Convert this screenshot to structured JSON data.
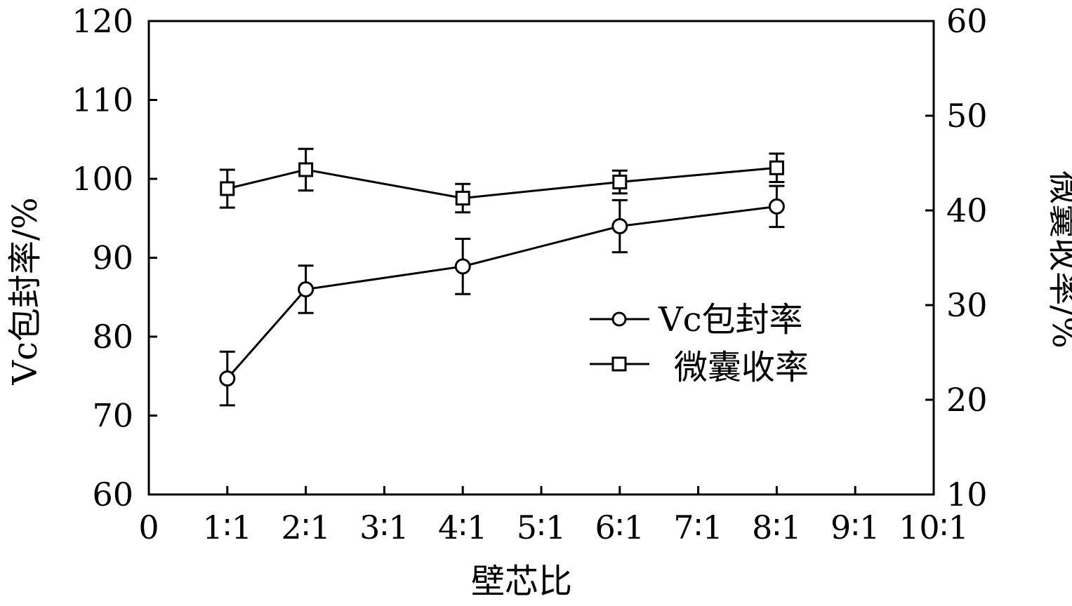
{
  "chart_data": {
    "type": "line",
    "xlabel": "壁芯比",
    "ylabel_left": "Vc包封率/%",
    "ylabel_right": "微囊收率/%",
    "x_ticks": [
      "0",
      "1∶1",
      "2∶1",
      "3∶1",
      "4∶1",
      "5∶1",
      "6∶1",
      "7∶1",
      "8∶1",
      "9∶1",
      "10∶1"
    ],
    "x_range": [
      0,
      10
    ],
    "ylim_left": [
      60,
      120
    ],
    "ylim_right": [
      10,
      60
    ],
    "y_ticks_left": [
      60,
      70,
      80,
      90,
      100,
      110,
      120
    ],
    "y_ticks_right": [
      10,
      20,
      30,
      40,
      50,
      60
    ],
    "grid": false,
    "legend_position": "center-right",
    "series": [
      {
        "name": "Vc包封率",
        "marker": "circle",
        "axis": "left",
        "x": [
          1,
          2,
          4,
          6,
          8
        ],
        "values": [
          74.7,
          86.0,
          88.9,
          94.0,
          96.5
        ],
        "errors": [
          3.4,
          3.0,
          3.5,
          3.3,
          2.6
        ]
      },
      {
        "name": "微囊收率",
        "marker": "square",
        "axis": "right",
        "x": [
          1,
          2,
          4,
          6,
          8
        ],
        "values": [
          42.3,
          44.3,
          41.3,
          43.0,
          44.5
        ],
        "errors": [
          2.0,
          2.2,
          1.5,
          1.2,
          1.5
        ]
      }
    ]
  }
}
